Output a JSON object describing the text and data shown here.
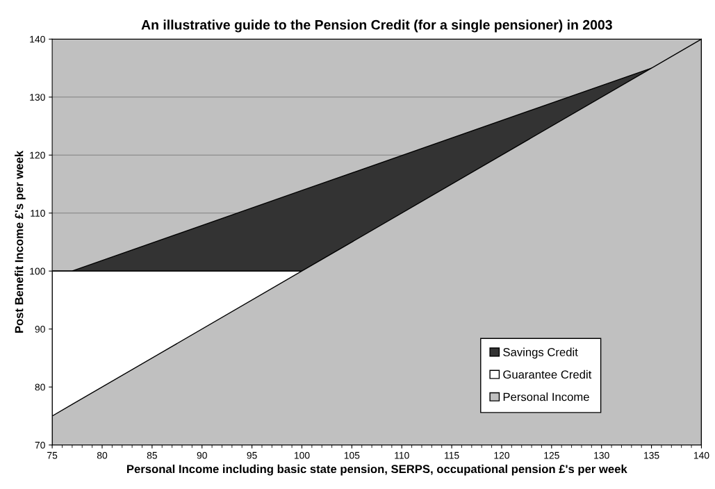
{
  "chart_data": {
    "type": "area",
    "title": "An illustrative guide to the Pension Credit (for a single pensioner) in 2003",
    "xlabel": "Personal Income including basic state pension, SERPS, occupational pension £'s per week",
    "ylabel": "Post Benefit Income £'s per week",
    "x": [
      75,
      77,
      100,
      135,
      140
    ],
    "series": [
      {
        "name": "Savings Credit",
        "color": "#333333",
        "values": [
          100,
          100,
          113.9,
          135,
          null
        ]
      },
      {
        "name": "Guarantee Credit",
        "color": "#ffffff",
        "values": [
          100,
          100,
          100,
          null,
          null
        ]
      },
      {
        "name": "Personal Income",
        "color": "#c0c0c0",
        "values": [
          75,
          77,
          100,
          135,
          140
        ]
      }
    ],
    "xlim": [
      75,
      140
    ],
    "xticks": [
      75,
      80,
      85,
      90,
      95,
      100,
      105,
      110,
      115,
      120,
      125,
      130,
      135,
      140
    ],
    "ylim": [
      70,
      140
    ],
    "yticks": [
      70,
      80,
      90,
      100,
      110,
      120,
      130,
      140
    ],
    "grid": "y",
    "legend": "bottom right"
  }
}
